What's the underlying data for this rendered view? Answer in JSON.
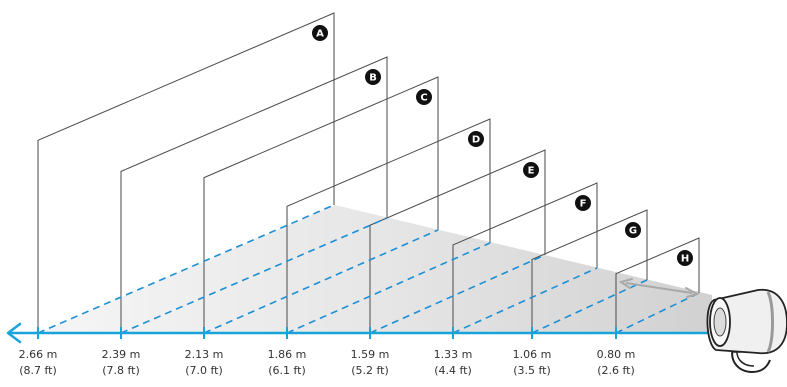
{
  "colors": {
    "axis": "#1aa3d9",
    "frame": "#4a4a4a",
    "dashed_ray": "#1b8fd6",
    "shadow": "#d4d4d4",
    "badge_fill": "#111111",
    "arrow": "#a9a9a9"
  },
  "screens": [
    {
      "letter": "A",
      "meters": "2.66 m",
      "feet": "(8.7 ft)"
    },
    {
      "letter": "B",
      "meters": "2.39 m",
      "feet": "(7.8 ft)"
    },
    {
      "letter": "C",
      "meters": "2.13 m",
      "feet": "(7.0 ft)"
    },
    {
      "letter": "D",
      "meters": "1.86 m",
      "feet": "(6.1 ft)"
    },
    {
      "letter": "E",
      "meters": "1.59 m",
      "feet": "(5.2 ft)"
    },
    {
      "letter": "F",
      "meters": "1.33 m",
      "feet": "(4.4 ft)"
    },
    {
      "letter": "G",
      "meters": "1.06 m",
      "feet": "(3.5 ft)"
    },
    {
      "letter": "H",
      "meters": "0.80 m",
      "feet": "(2.6 ft)"
    }
  ],
  "projector": {
    "icon": "projector-icon"
  },
  "axis_arrow": {
    "icon": "arrow-left-icon"
  }
}
